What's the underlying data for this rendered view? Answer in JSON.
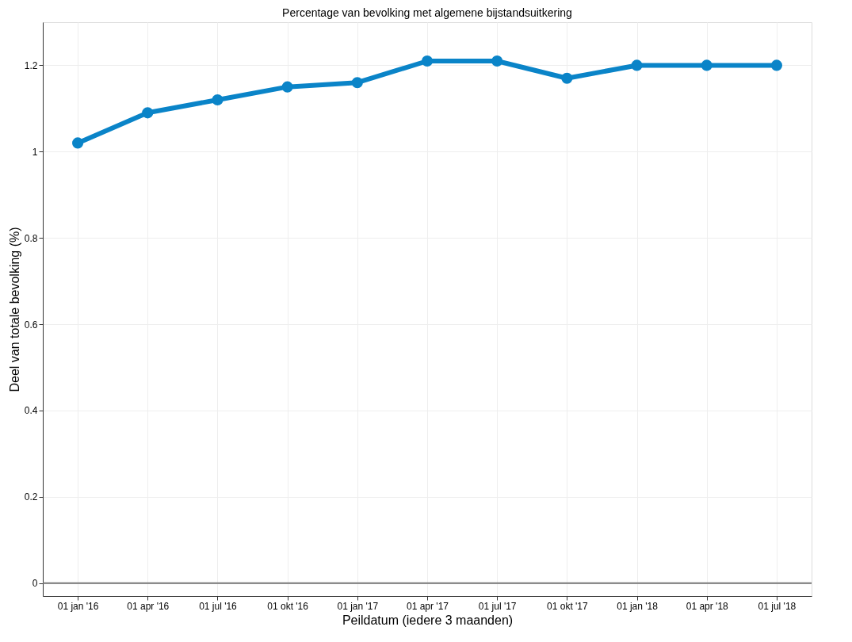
{
  "chart_data": {
    "type": "line",
    "title": "Percentage van bevolking met algemene bijstandsuitkering",
    "xlabel": "Peildatum (iedere 3 maanden)",
    "ylabel": "Deel van totale bevolking (%)",
    "categories": [
      "01 jan '16",
      "01 apr '16",
      "01 jul '16",
      "01 okt '16",
      "01 jan '17",
      "01 apr '17",
      "01 jul '17",
      "01 okt '17",
      "01 jan '18",
      "01 apr '18",
      "01 jul '18"
    ],
    "series": [
      {
        "color": "#0a84c8",
        "values": [
          1.02,
          1.09,
          1.12,
          1.15,
          1.16,
          1.21,
          1.21,
          1.17,
          1.2,
          1.2,
          1.2
        ]
      }
    ],
    "ylim": [
      -0.03,
      1.3
    ],
    "yticks": [
      0,
      0.2,
      0.4,
      0.6,
      0.8,
      1,
      1.2
    ],
    "grid": true,
    "marker": "circle",
    "line_style": "solid",
    "ref_lines": [
      {
        "axis": "y",
        "value": 0,
        "color": "#777777"
      }
    ]
  }
}
